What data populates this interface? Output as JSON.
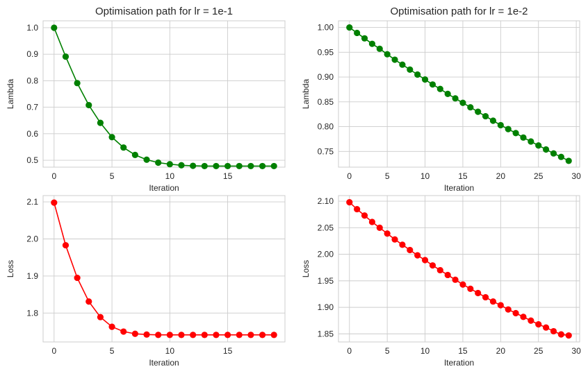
{
  "colors": {
    "lambda": "#008000",
    "loss": "#ff0000",
    "grid": "#cccccc",
    "text": "#262626"
  },
  "chart_data": [
    {
      "type": "line",
      "title": "Optimisation path for lr = 1e-1",
      "xlabel": "Iteration",
      "ylabel": "Lambda",
      "color": "#008000",
      "grid": true,
      "xlim": [
        -0.95,
        19.95
      ],
      "ylim": [
        0.4739,
        1.0261
      ],
      "xticks": [
        0,
        5,
        10,
        15
      ],
      "yticks": [
        "1.0",
        "0.9",
        "0.8",
        "0.7",
        "0.6",
        "0.5"
      ],
      "x": [
        0,
        1,
        2,
        3,
        4,
        5,
        6,
        7,
        8,
        9,
        10,
        11,
        12,
        13,
        14,
        15,
        16,
        17,
        18,
        19
      ],
      "values": [
        1.0,
        0.891,
        0.791,
        0.708,
        0.641,
        0.587,
        0.548,
        0.52,
        0.502,
        0.491,
        0.485,
        0.481,
        0.479,
        0.478,
        0.478,
        0.478,
        0.478,
        0.478,
        0.478,
        0.478
      ]
    },
    {
      "type": "line",
      "title": "Optimisation path for lr = 1e-2",
      "xlabel": "Iteration",
      "ylabel": "Lambda",
      "color": "#008000",
      "grid": true,
      "xlim": [
        -1.45,
        30.45
      ],
      "ylim": [
        0.7183,
        1.0134
      ],
      "xticks": [
        0,
        5,
        10,
        15,
        20,
        25,
        30
      ],
      "yticks": [
        "1.00",
        "0.95",
        "0.90",
        "0.85",
        "0.80",
        "0.75"
      ],
      "x": [
        0,
        1,
        2,
        3,
        4,
        5,
        6,
        7,
        8,
        9,
        10,
        11,
        12,
        13,
        14,
        15,
        16,
        17,
        18,
        19,
        20,
        21,
        22,
        23,
        24,
        25,
        26,
        27,
        28,
        29
      ],
      "values": [
        1.0,
        0.989,
        0.978,
        0.967,
        0.957,
        0.946,
        0.935,
        0.925,
        0.915,
        0.905,
        0.895,
        0.885,
        0.876,
        0.866,
        0.857,
        0.848,
        0.839,
        0.83,
        0.821,
        0.812,
        0.803,
        0.795,
        0.787,
        0.778,
        0.77,
        0.762,
        0.754,
        0.746,
        0.739,
        0.731
      ]
    },
    {
      "type": "line",
      "title": "",
      "xlabel": "Iteration",
      "ylabel": "Loss",
      "color": "#ff0000",
      "grid": true,
      "xlim": [
        -0.95,
        19.95
      ],
      "ylim": [
        1.722,
        2.117
      ],
      "xticks": [
        0,
        5,
        10,
        15
      ],
      "yticks": [
        "2.1",
        "2.0",
        "1.9",
        "1.8"
      ],
      "x": [
        0,
        1,
        2,
        3,
        4,
        5,
        6,
        7,
        8,
        9,
        10,
        11,
        12,
        13,
        14,
        15,
        16,
        17,
        18,
        19
      ],
      "values": [
        2.098,
        1.983,
        1.895,
        1.831,
        1.789,
        1.763,
        1.75,
        1.744,
        1.742,
        1.741,
        1.741,
        1.741,
        1.741,
        1.741,
        1.741,
        1.741,
        1.741,
        1.741,
        1.741,
        1.741
      ]
    },
    {
      "type": "line",
      "title": "",
      "xlabel": "Iteration",
      "ylabel": "Loss",
      "color": "#ff0000",
      "grid": true,
      "xlim": [
        -1.45,
        30.45
      ],
      "ylim": [
        1.8348,
        2.1106
      ],
      "xticks": [
        0,
        5,
        10,
        15,
        20,
        25,
        30
      ],
      "yticks": [
        "2.10",
        "2.05",
        "2.00",
        "1.95",
        "1.90",
        "1.85"
      ],
      "x": [
        0,
        1,
        2,
        3,
        4,
        5,
        6,
        7,
        8,
        9,
        10,
        11,
        12,
        13,
        14,
        15,
        16,
        17,
        18,
        19,
        20,
        21,
        22,
        23,
        24,
        25,
        26,
        27,
        28,
        29
      ],
      "values": [
        2.098,
        2.085,
        2.073,
        2.061,
        2.05,
        2.039,
        2.028,
        2.018,
        2.008,
        1.998,
        1.989,
        1.979,
        1.97,
        1.961,
        1.952,
        1.943,
        1.935,
        1.927,
        1.919,
        1.911,
        1.904,
        1.896,
        1.889,
        1.882,
        1.875,
        1.868,
        1.862,
        1.855,
        1.849,
        1.847
      ]
    }
  ]
}
